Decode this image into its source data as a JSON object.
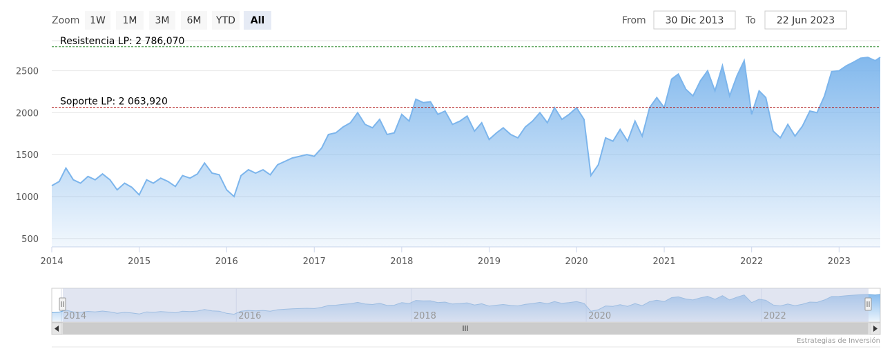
{
  "range_selector": {
    "zoom_label": "Zoom",
    "buttons": [
      "1W",
      "1M",
      "3M",
      "6M",
      "YTD",
      "All"
    ],
    "selected": "All",
    "from_label": "From",
    "from_value": "30 Dic 2013",
    "to_label": "To",
    "to_value": "22 Jun 2023"
  },
  "credits": "Estrategias de Inversión",
  "colors": {
    "series": "#7cb5ec",
    "resistance_line": "#2e8b2e",
    "support_line": "#b22222",
    "navigator_mask": "#c8cfe6"
  },
  "chart_data": {
    "type": "area",
    "xlim": [
      "2014-01-01",
      "2023-06-22"
    ],
    "ylim": [
      400,
      2850
    ],
    "y_ticks": [
      500,
      1000,
      1500,
      2000,
      2500
    ],
    "x_ticks": [
      "2014",
      "2015",
      "2016",
      "2017",
      "2018",
      "2019",
      "2020",
      "2021",
      "2022",
      "2023"
    ],
    "grid": true,
    "reference_lines": [
      {
        "label": "Resistencia LP: 2 786,070",
        "value": 2786.07,
        "style": "dashed"
      },
      {
        "label": "Soporte LP: 2 063,920",
        "value": 2063.92,
        "style": "dashed"
      }
    ],
    "series": [
      {
        "x": [
          "2014-01-01",
          "2014-02-01",
          "2014-03-01",
          "2014-04-01",
          "2014-05-01",
          "2014-06-01",
          "2014-07-01",
          "2014-08-01",
          "2014-09-01",
          "2014-10-01",
          "2014-11-01",
          "2014-12-01",
          "2015-01-01",
          "2015-02-01",
          "2015-03-01",
          "2015-04-01",
          "2015-05-01",
          "2015-06-01",
          "2015-07-01",
          "2015-08-01",
          "2015-09-01",
          "2015-10-01",
          "2015-11-01",
          "2015-12-01",
          "2016-01-01",
          "2016-02-01",
          "2016-03-01",
          "2016-04-01",
          "2016-05-01",
          "2016-06-01",
          "2016-07-01",
          "2016-08-01",
          "2016-09-01",
          "2016-10-01",
          "2016-11-01",
          "2016-12-01",
          "2017-01-01",
          "2017-02-01",
          "2017-03-01",
          "2017-04-01",
          "2017-05-01",
          "2017-06-01",
          "2017-07-01",
          "2017-08-01",
          "2017-09-01",
          "2017-10-01",
          "2017-11-01",
          "2017-12-01",
          "2018-01-01",
          "2018-02-01",
          "2018-03-01",
          "2018-04-01",
          "2018-05-01",
          "2018-06-01",
          "2018-07-01",
          "2018-08-01",
          "2018-09-01",
          "2018-10-01",
          "2018-11-01",
          "2018-12-01",
          "2019-01-01",
          "2019-02-01",
          "2019-03-01",
          "2019-04-01",
          "2019-05-01",
          "2019-06-01",
          "2019-07-01",
          "2019-08-01",
          "2019-09-01",
          "2019-10-01",
          "2019-11-01",
          "2019-12-01",
          "2020-01-01",
          "2020-02-01",
          "2020-03-01",
          "2020-04-01",
          "2020-05-01",
          "2020-06-01",
          "2020-07-01",
          "2020-08-01",
          "2020-09-01",
          "2020-10-01",
          "2020-11-01",
          "2020-12-01",
          "2021-01-01",
          "2021-02-01",
          "2021-03-01",
          "2021-04-01",
          "2021-05-01",
          "2021-06-01",
          "2021-07-01",
          "2021-08-01",
          "2021-09-01",
          "2021-10-01",
          "2021-11-01",
          "2021-12-01",
          "2022-01-01",
          "2022-02-01",
          "2022-03-01",
          "2022-04-01",
          "2022-05-01",
          "2022-06-01",
          "2022-07-01",
          "2022-08-01",
          "2022-09-01",
          "2022-10-01",
          "2022-11-01",
          "2022-12-01",
          "2023-01-01",
          "2023-02-01",
          "2023-03-01",
          "2023-04-01",
          "2023-05-01",
          "2023-06-01",
          "2023-06-22"
        ],
        "y": [
          1130,
          1180,
          1340,
          1200,
          1160,
          1240,
          1200,
          1270,
          1200,
          1080,
          1160,
          1110,
          1020,
          1200,
          1160,
          1220,
          1180,
          1120,
          1250,
          1220,
          1270,
          1400,
          1280,
          1260,
          1080,
          1000,
          1250,
          1320,
          1280,
          1320,
          1260,
          1380,
          1420,
          1460,
          1480,
          1500,
          1480,
          1580,
          1740,
          1760,
          1830,
          1880,
          2000,
          1860,
          1820,
          1920,
          1740,
          1760,
          1980,
          1900,
          2160,
          2120,
          2130,
          1980,
          2020,
          1860,
          1900,
          1960,
          1780,
          1880,
          1680,
          1760,
          1820,
          1740,
          1700,
          1830,
          1900,
          2000,
          1880,
          2060,
          1920,
          1980,
          2060,
          1920,
          1250,
          1380,
          1700,
          1660,
          1800,
          1660,
          1900,
          1720,
          2060,
          2180,
          2060,
          2400,
          2460,
          2280,
          2200,
          2380,
          2500,
          2260,
          2560,
          2200,
          2440,
          2620,
          1980,
          2260,
          2180,
          1780,
          1700,
          1860,
          1720,
          1840,
          2020,
          2000,
          2200,
          2490,
          2500,
          2560,
          2600,
          2650,
          2660,
          2620,
          2660
        ]
      }
    ]
  }
}
